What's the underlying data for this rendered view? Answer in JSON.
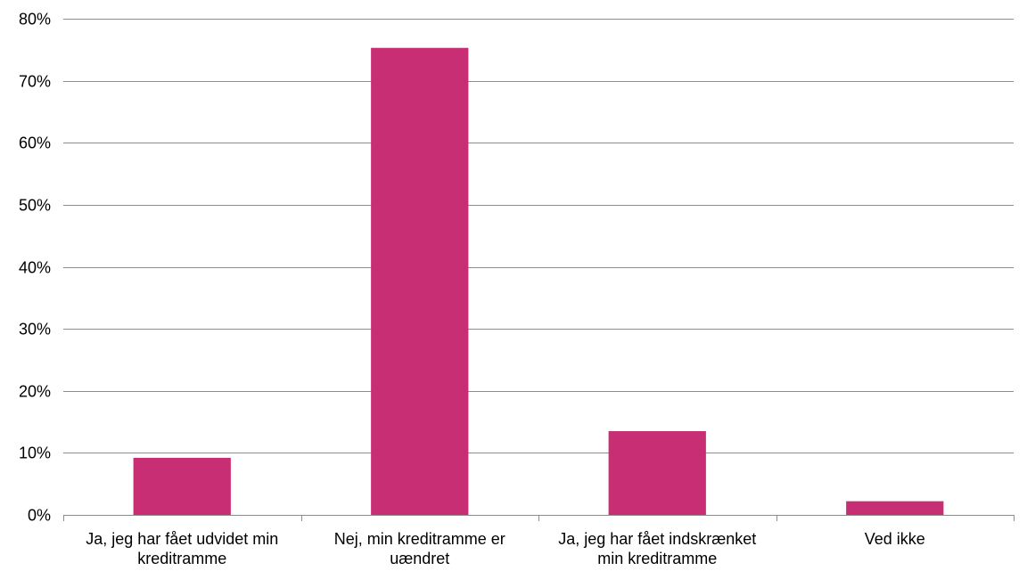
{
  "chart_data": {
    "type": "bar",
    "categories": [
      [
        "Ja, jeg har fået udvidet min",
        "kreditramme"
      ],
      [
        "Nej, min kreditramme er",
        "uændret"
      ],
      [
        "Ja, jeg har fået indskrænket",
        "min kreditramme"
      ],
      [
        "Ved ikke"
      ]
    ],
    "values": [
      9.2,
      75.3,
      13.5,
      2.2
    ],
    "ylim": [
      0,
      80
    ],
    "yticks": [
      0,
      10,
      20,
      30,
      40,
      50,
      60,
      70,
      80
    ],
    "ytick_labels": [
      "0%",
      "10%",
      "20%",
      "30%",
      "40%",
      "50%",
      "60%",
      "70%",
      "80%"
    ],
    "grid": true,
    "legend": "none",
    "title": "",
    "xlabel": "",
    "ylabel": ""
  },
  "colors": {
    "bar": "#c72e74",
    "grid": "#8c8c8c",
    "axis": "#8c8c8c"
  }
}
